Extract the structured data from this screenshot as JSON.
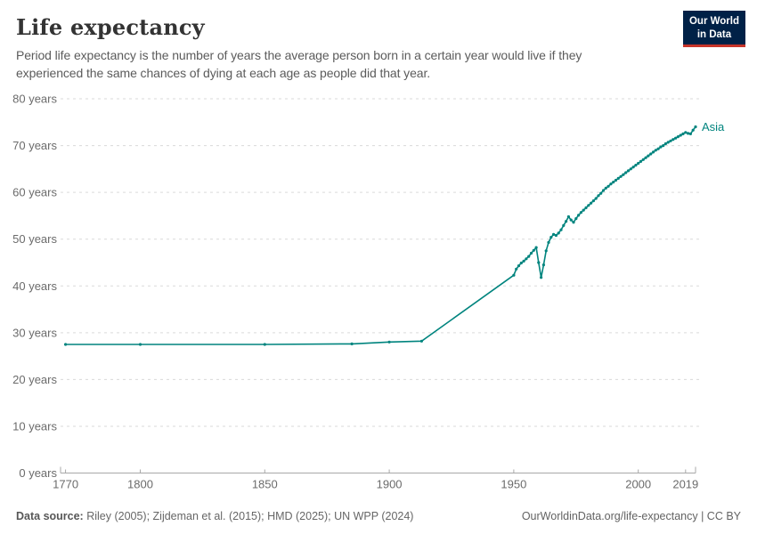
{
  "header": {
    "title": "Life expectancy",
    "subtitle": "Period life expectancy is the number of years the average person born in a certain year would live if they experienced the same chances of dying at each age as people did that year.",
    "logo": {
      "line1": "Our World",
      "line2": "in Data",
      "bg_color": "#002147",
      "accent_color": "#c7342a"
    }
  },
  "footer": {
    "datasource_label": "Data source:",
    "datasource_value": " Riley (2005); Zijdeman et al. (2015); HMD (2025); UN WPP (2024)",
    "link": "OurWorldinData.org/life-expectancy | CC BY"
  },
  "chart_data": {
    "type": "line",
    "title": "Life expectancy",
    "xlabel": "",
    "ylabel": "years",
    "x_domain": [
      1768,
      2023
    ],
    "y_domain": [
      0,
      80
    ],
    "x_ticks": [
      1770,
      1800,
      1850,
      1900,
      1950,
      2000,
      2019
    ],
    "y_ticks": [
      0,
      10,
      20,
      30,
      40,
      50,
      60,
      70,
      80
    ],
    "y_tick_suffix": " years",
    "grid": "horizontal-dashed",
    "legend_position": "end-of-line-label",
    "series": [
      {
        "name": "Asia",
        "color": "#00847e",
        "points": [
          [
            1770,
            27.5
          ],
          [
            1800,
            27.5
          ],
          [
            1850,
            27.5
          ],
          [
            1885,
            27.6
          ],
          [
            1900,
            28.0
          ],
          [
            1913,
            28.2
          ],
          [
            1950,
            42.3
          ],
          [
            1951,
            43.6
          ],
          [
            1952,
            44.3
          ],
          [
            1953,
            44.9
          ],
          [
            1954,
            45.3
          ],
          [
            1955,
            45.8
          ],
          [
            1956,
            46.3
          ],
          [
            1957,
            47.0
          ],
          [
            1958,
            47.6
          ],
          [
            1959,
            48.2
          ],
          [
            1960,
            45.0
          ],
          [
            1961,
            41.8
          ],
          [
            1962,
            44.5
          ],
          [
            1963,
            47.5
          ],
          [
            1964,
            49.3
          ],
          [
            1965,
            50.4
          ],
          [
            1966,
            51.0
          ],
          [
            1967,
            50.8
          ],
          [
            1968,
            51.3
          ],
          [
            1969,
            52.0
          ],
          [
            1970,
            52.9
          ],
          [
            1971,
            53.8
          ],
          [
            1972,
            54.8
          ],
          [
            1973,
            54.1
          ],
          [
            1974,
            53.6
          ],
          [
            1975,
            54.4
          ],
          [
            1976,
            55.1
          ],
          [
            1977,
            55.7
          ],
          [
            1978,
            56.2
          ],
          [
            1979,
            56.7
          ],
          [
            1980,
            57.2
          ],
          [
            1981,
            57.7
          ],
          [
            1982,
            58.2
          ],
          [
            1983,
            58.7
          ],
          [
            1984,
            59.3
          ],
          [
            1985,
            59.8
          ],
          [
            1986,
            60.4
          ],
          [
            1987,
            60.9
          ],
          [
            1988,
            61.3
          ],
          [
            1989,
            61.8
          ],
          [
            1990,
            62.2
          ],
          [
            1991,
            62.6
          ],
          [
            1992,
            63.0
          ],
          [
            1993,
            63.4
          ],
          [
            1994,
            63.8
          ],
          [
            1995,
            64.2
          ],
          [
            1996,
            64.6
          ],
          [
            1997,
            65.0
          ],
          [
            1998,
            65.4
          ],
          [
            1999,
            65.8
          ],
          [
            2000,
            66.2
          ],
          [
            2001,
            66.6
          ],
          [
            2002,
            67.0
          ],
          [
            2003,
            67.4
          ],
          [
            2004,
            67.8
          ],
          [
            2005,
            68.2
          ],
          [
            2006,
            68.6
          ],
          [
            2007,
            69.0
          ],
          [
            2008,
            69.3
          ],
          [
            2009,
            69.7
          ],
          [
            2010,
            70.0
          ],
          [
            2011,
            70.4
          ],
          [
            2012,
            70.7
          ],
          [
            2013,
            71.0
          ],
          [
            2014,
            71.3
          ],
          [
            2015,
            71.6
          ],
          [
            2016,
            71.9
          ],
          [
            2017,
            72.2
          ],
          [
            2018,
            72.5
          ],
          [
            2019,
            72.8
          ],
          [
            2020,
            72.6
          ],
          [
            2021,
            72.5
          ],
          [
            2022,
            73.3
          ],
          [
            2023,
            74.0
          ]
        ]
      }
    ]
  }
}
